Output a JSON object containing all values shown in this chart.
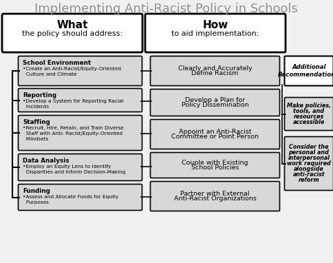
{
  "title": "Implementing Anti-Racist Policy in Schools",
  "title_color": "#909090",
  "bg_color": "#f0f0f0",
  "left_items": [
    {
      "title": "School Environment",
      "body": "•Create an Anti-Racist/Equity-Oriented\n  Culture and Climate"
    },
    {
      "title": "Reporting",
      "body": "•Develop a System for Reporting Racial\n  Incidents"
    },
    {
      "title": "Staffing",
      "body": "•Recruit, Hire, Retain, and Train Diverse\n  Staff with Anti- Racist/Equity-Oriented\n  Mindsets"
    },
    {
      "title": "Data Analysis",
      "body": "•Employ an Equity Lens to Identify\n  Disparities and Inform Decision-Making"
    },
    {
      "title": "Funding",
      "body": "•Assess and Allocate Funds for Equity\n  Purposes"
    }
  ],
  "right_items": [
    "Clearly and Accurately\nDefine Racism",
    "Develop a Plan for\nPolicy Dissemination",
    "Appoint an Anti-Racist\nCommittee or Point Person",
    "Couple with Existing\nSchool Policies",
    "Partner with External\nAnti-Racist Organizations"
  ],
  "rec_header": "Additional\nRecommendations",
  "rec_items": [
    "Make policies,\ntools, and\nresources\naccessible",
    "Consider the\npersonal and\ninterpersonal\nwork required\nalongside\nanti-racist\nreform"
  ],
  "box_fill_light": "#d8d8d8",
  "box_fill_white": "#ffffff",
  "box_edge": "#000000",
  "left_header_bold": "What",
  "left_header_sub": "the policy should address:",
  "right_header_bold": "How",
  "right_header_sub": "to aid implementation:"
}
